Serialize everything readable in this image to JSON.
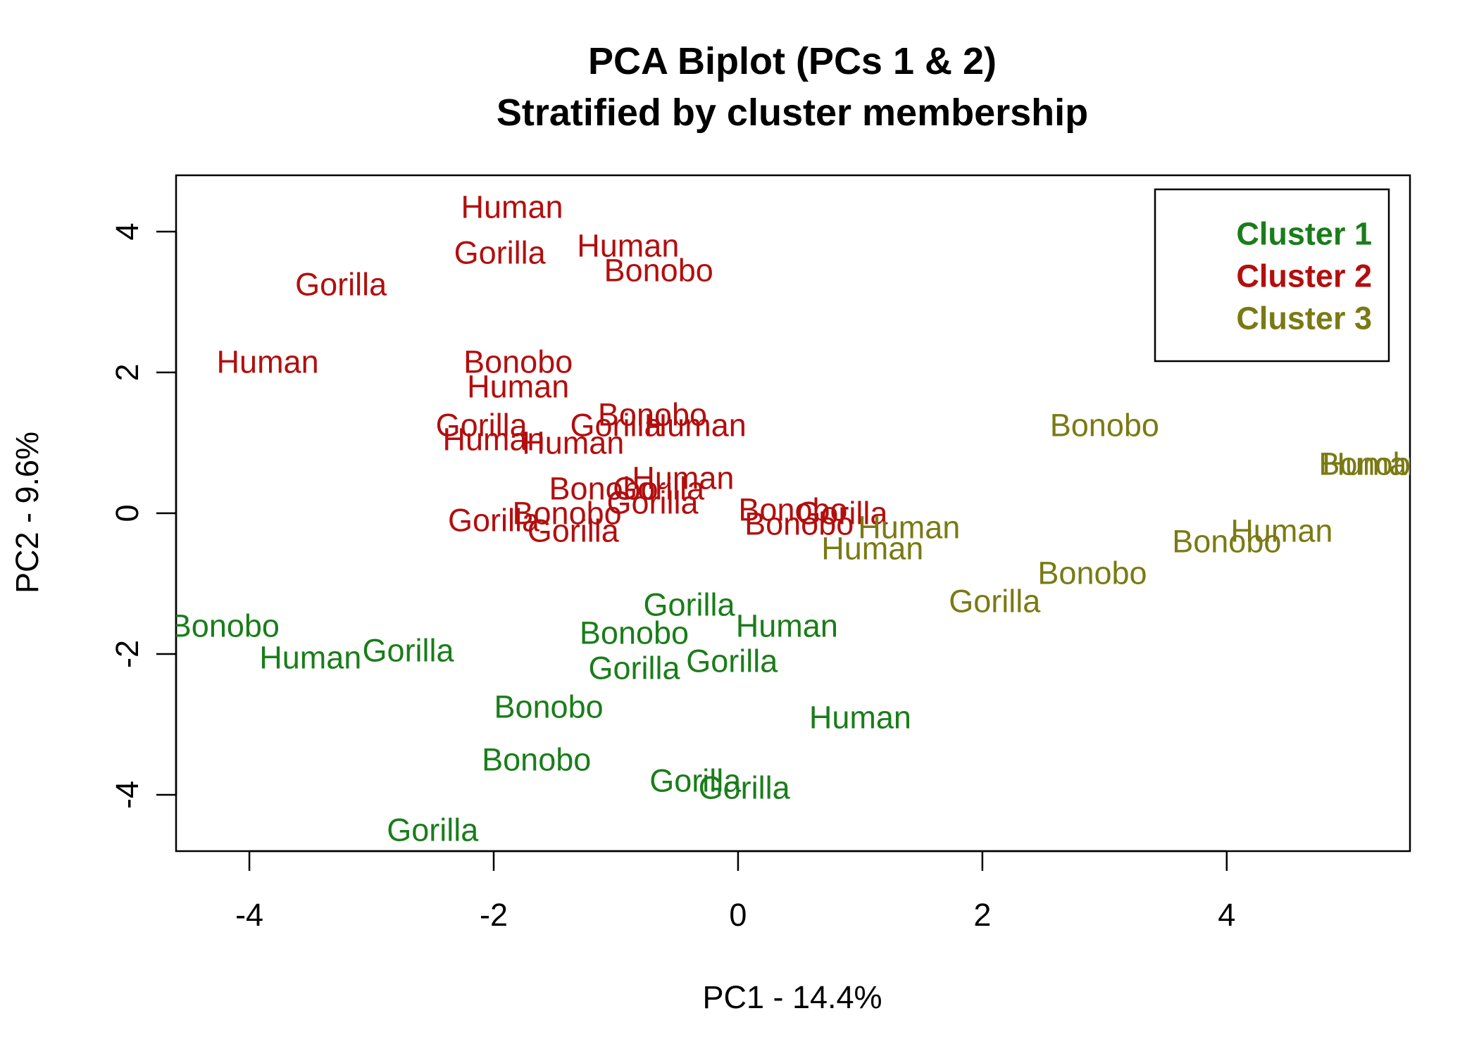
{
  "chart_data": {
    "type": "scatter",
    "title": "PCA Biplot (PCs 1 & 2)",
    "subtitle": "Stratified by cluster membership",
    "xlabel": "PC1 - 14.4%",
    "ylabel": "PC2 - 9.6%",
    "xlim": [
      -4.6,
      5.5
    ],
    "ylim": [
      -4.8,
      4.8
    ],
    "xticks": [
      -4,
      -2,
      0,
      2,
      4
    ],
    "yticks": [
      -4,
      -2,
      0,
      2,
      4
    ],
    "xtick_labels": [
      "-4",
      "-2",
      "0",
      "2",
      "4"
    ],
    "ytick_labels": [
      "-4",
      "-2",
      "0",
      "2",
      "4"
    ],
    "grid": false,
    "legend_position": "top-right",
    "legend": [
      {
        "label": "Cluster 1",
        "color": "#1a7d1a"
      },
      {
        "label": "Cluster 2",
        "color": "#b30e0e"
      },
      {
        "label": "Cluster 3",
        "color": "#7a7a14"
      }
    ],
    "series": [
      {
        "name": "Cluster 1",
        "color": "#1a7d1a",
        "points": [
          {
            "label": "Bonobo",
            "x": -4.2,
            "y": -1.6
          },
          {
            "label": "Human",
            "x": -3.5,
            "y": -2.05
          },
          {
            "label": "Gorilla",
            "x": -2.7,
            "y": -1.95
          },
          {
            "label": "Gorilla",
            "x": -0.4,
            "y": -1.3
          },
          {
            "label": "Human",
            "x": 0.4,
            "y": -1.6
          },
          {
            "label": "Bonobo",
            "x": -0.85,
            "y": -1.7
          },
          {
            "label": "Gorilla",
            "x": -0.85,
            "y": -2.2
          },
          {
            "label": "Gorilla",
            "x": -0.05,
            "y": -2.1
          },
          {
            "label": "Bonobo",
            "x": -1.55,
            "y": -2.75
          },
          {
            "label": "Human",
            "x": 1.0,
            "y": -2.9
          },
          {
            "label": "Bonobo",
            "x": -1.65,
            "y": -3.5
          },
          {
            "label": "Gorilla",
            "x": -0.35,
            "y": -3.8
          },
          {
            "label": "Gorilla",
            "x": 0.05,
            "y": -3.9
          },
          {
            "label": "Gorilla",
            "x": -2.5,
            "y": -4.5
          }
        ]
      },
      {
        "name": "Cluster 2",
        "color": "#b30e0e",
        "points": [
          {
            "label": "Human",
            "x": -1.85,
            "y": 4.35
          },
          {
            "label": "Gorilla",
            "x": -1.95,
            "y": 3.7
          },
          {
            "label": "Human",
            "x": -0.9,
            "y": 3.8
          },
          {
            "label": "Bonobo",
            "x": -0.65,
            "y": 3.45
          },
          {
            "label": "Gorilla",
            "x": -3.25,
            "y": 3.25
          },
          {
            "label": "Human",
            "x": -3.85,
            "y": 2.15
          },
          {
            "label": "Bonobo",
            "x": -1.8,
            "y": 2.15
          },
          {
            "label": "Human",
            "x": -1.8,
            "y": 1.8
          },
          {
            "label": "Gorilla",
            "x": -2.1,
            "y": 1.25
          },
          {
            "label": "Human",
            "x": -2.0,
            "y": 1.05
          },
          {
            "label": "Human",
            "x": -1.35,
            "y": 1.0
          },
          {
            "label": "Gorilla",
            "x": -1.0,
            "y": 1.25
          },
          {
            "label": "Bonobo",
            "x": -0.7,
            "y": 1.4
          },
          {
            "label": "Human",
            "x": -0.35,
            "y": 1.25
          },
          {
            "label": "Human",
            "x": -0.45,
            "y": 0.5
          },
          {
            "label": "Bonobo",
            "x": -1.1,
            "y": 0.35
          },
          {
            "label": "Gorilla",
            "x": -0.65,
            "y": 0.35
          },
          {
            "label": "Gorilla",
            "x": -0.7,
            "y": 0.15
          },
          {
            "label": "Gorilla",
            "x": -2.0,
            "y": -0.1
          },
          {
            "label": "Bonobo",
            "x": -1.4,
            "y": 0.0
          },
          {
            "label": "Gorilla",
            "x": -1.35,
            "y": -0.25
          },
          {
            "label": "Bonobo",
            "x": 0.45,
            "y": 0.05
          },
          {
            "label": "Gorilla",
            "x": 0.85,
            "y": 0.0
          },
          {
            "label": "Bonobo",
            "x": 0.5,
            "y": -0.15
          }
        ]
      },
      {
        "name": "Cluster 3",
        "color": "#7a7a14",
        "points": [
          {
            "label": "Bonobo",
            "x": 3.0,
            "y": 1.25
          },
          {
            "label": "Human",
            "x": 5.2,
            "y": 0.7
          },
          {
            "label": "Bonobo",
            "x": 5.2,
            "y": 0.7
          },
          {
            "label": "Human",
            "x": 1.4,
            "y": -0.2
          },
          {
            "label": "Human",
            "x": 1.1,
            "y": -0.5
          },
          {
            "label": "Human",
            "x": 4.45,
            "y": -0.25
          },
          {
            "label": "Bonobo",
            "x": 4.0,
            "y": -0.4
          },
          {
            "label": "Bonobo",
            "x": 2.9,
            "y": -0.85
          },
          {
            "label": "Gorilla",
            "x": 2.1,
            "y": -1.25
          }
        ]
      }
    ]
  }
}
